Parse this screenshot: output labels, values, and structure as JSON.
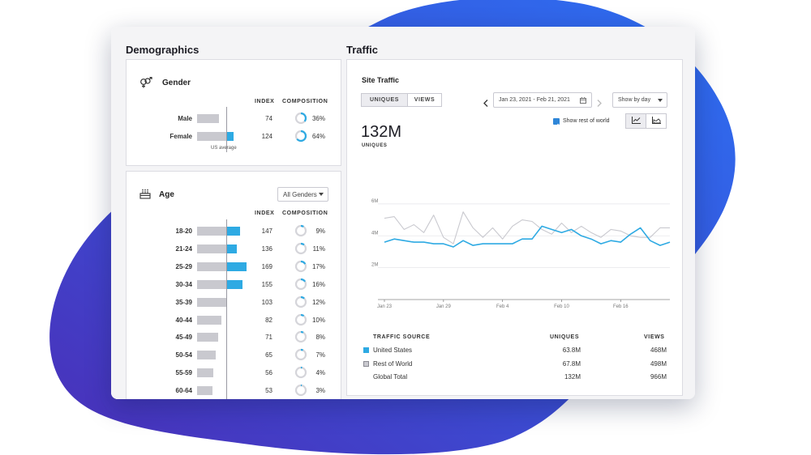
{
  "colors": {
    "blob_start": "#2d6ff2",
    "blob_end": "#4a2fb8",
    "accent": "#2eaae3",
    "gray_bar": "#c9c9cf"
  },
  "demographics": {
    "title": "Demographics",
    "gender": {
      "heading": "Gender",
      "icon": "gender-icon",
      "col_index": "INDEX",
      "col_composition": "COMPOSITION",
      "rows": [
        {
          "label": "Male",
          "index": "74",
          "pct": "36%",
          "fraction": 0.36,
          "index_value": 74
        },
        {
          "label": "Female",
          "index": "124",
          "pct": "64%",
          "fraction": 0.64,
          "index_value": 124
        }
      ],
      "us_average": "US average"
    },
    "age": {
      "heading": "Age",
      "icon": "cake-icon",
      "dropdown": "All Genders",
      "col_index": "INDEX",
      "col_composition": "COMPOSITION",
      "rows": [
        {
          "label": "18-20",
          "index": "147",
          "pct": "9%",
          "fraction": 0.09,
          "index_value": 147
        },
        {
          "label": "21-24",
          "index": "136",
          "pct": "11%",
          "fraction": 0.11,
          "index_value": 136
        },
        {
          "label": "25-29",
          "index": "169",
          "pct": "17%",
          "fraction": 0.17,
          "index_value": 169
        },
        {
          "label": "30-34",
          "index": "155",
          "pct": "16%",
          "fraction": 0.16,
          "index_value": 155
        },
        {
          "label": "35-39",
          "index": "103",
          "pct": "12%",
          "fraction": 0.12,
          "index_value": 103
        },
        {
          "label": "40-44",
          "index": "82",
          "pct": "10%",
          "fraction": 0.1,
          "index_value": 82
        },
        {
          "label": "45-49",
          "index": "71",
          "pct": "8%",
          "fraction": 0.08,
          "index_value": 71
        },
        {
          "label": "50-54",
          "index": "65",
          "pct": "7%",
          "fraction": 0.07,
          "index_value": 65
        },
        {
          "label": "55-59",
          "index": "56",
          "pct": "4%",
          "fraction": 0.04,
          "index_value": 56
        },
        {
          "label": "60-64",
          "index": "53",
          "pct": "3%",
          "fraction": 0.03,
          "index_value": 53
        }
      ]
    }
  },
  "traffic": {
    "title": "Traffic",
    "panel_heading": "Site Traffic",
    "toggle": {
      "uniques": "UNIQUES",
      "views": "VIEWS",
      "active": "uniques"
    },
    "date_range": "Jan 23, 2021 - Feb 21, 2021",
    "show_by": "Show by day",
    "show_rest_label": "Show rest of world",
    "show_rest_checked": true,
    "big_number": "132M",
    "big_number_label": "UNIQUES",
    "table": {
      "headers": [
        "TRAFFIC SOURCE",
        "UNIQUES",
        "VIEWS"
      ],
      "rows": [
        {
          "source": "United States",
          "uniques": "63.8M",
          "views": "468M",
          "swatch": "#2eaae3"
        },
        {
          "source": "Rest of World",
          "uniques": "67.8M",
          "views": "498M",
          "swatch": "#c9c9cf"
        },
        {
          "source": "Global Total",
          "uniques": "132M",
          "views": "966M",
          "swatch": ""
        }
      ]
    }
  },
  "chart_data": {
    "type": "line",
    "title": "",
    "xlabel": "",
    "ylabel": "",
    "x": [
      "Jan 23",
      "Jan 24",
      "Jan 25",
      "Jan 26",
      "Jan 27",
      "Jan 28",
      "Jan 29",
      "Jan 30",
      "Jan 31",
      "Feb 1",
      "Feb 2",
      "Feb 3",
      "Feb 4",
      "Feb 5",
      "Feb 6",
      "Feb 7",
      "Feb 8",
      "Feb 9",
      "Feb 10",
      "Feb 11",
      "Feb 12",
      "Feb 13",
      "Feb 14",
      "Feb 15",
      "Feb 16",
      "Feb 17",
      "Feb 18",
      "Feb 19",
      "Feb 20",
      "Feb 21"
    ],
    "x_tick_labels": [
      "Jan 23",
      "Jan 29",
      "Feb 4",
      "Feb 10",
      "Feb 16"
    ],
    "y_tick_labels": [
      "6M",
      "4M",
      "2M"
    ],
    "ylim": [
      0,
      6.4
    ],
    "grid": true,
    "series": [
      {
        "name": "Rest of World",
        "color": "#c9c9cf",
        "values": [
          5.1,
          5.2,
          4.4,
          4.7,
          4.2,
          5.3,
          3.9,
          3.5,
          5.5,
          4.5,
          3.9,
          4.5,
          3.8,
          4.6,
          5.0,
          4.9,
          4.4,
          4.1,
          4.8,
          4.2,
          4.6,
          4.2,
          3.9,
          4.4,
          4.3,
          4.0,
          3.9,
          3.9,
          4.5,
          4.5
        ]
      },
      {
        "name": "United States",
        "color": "#2eaae3",
        "values": [
          3.6,
          3.8,
          3.7,
          3.6,
          3.6,
          3.5,
          3.5,
          3.3,
          3.7,
          3.4,
          3.5,
          3.5,
          3.5,
          3.5,
          3.8,
          3.8,
          4.6,
          4.4,
          4.2,
          4.4,
          4.0,
          3.8,
          3.5,
          3.7,
          3.6,
          4.1,
          4.5,
          3.7,
          3.4,
          3.6
        ]
      }
    ]
  }
}
